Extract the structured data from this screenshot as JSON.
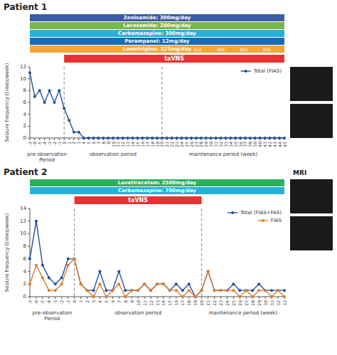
{
  "chart_data": [
    {
      "type": "line",
      "title": "Patient 1",
      "x": [
        -7,
        -6,
        -5,
        -4,
        -3,
        -2,
        -1,
        0,
        1,
        2,
        3,
        4,
        5,
        6,
        7,
        8,
        9,
        10,
        11,
        12,
        13,
        14,
        15,
        16,
        17,
        18,
        19,
        20,
        21,
        22,
        23,
        24,
        25,
        26,
        27,
        28,
        29,
        30,
        31,
        32,
        33,
        34,
        35,
        36,
        37,
        38,
        39,
        40,
        41,
        42,
        43,
        44,
        45
      ],
      "series": [
        {
          "name": "Total (FIAS)",
          "color": "#1f4e9c",
          "marker": "circle",
          "values": [
            11,
            7,
            8,
            6,
            8,
            6,
            8,
            5,
            3,
            1,
            1,
            0,
            0,
            0,
            0,
            0,
            0,
            0,
            0,
            0,
            0,
            0,
            0,
            0,
            0,
            0,
            0,
            0,
            0,
            0,
            0,
            0,
            0,
            0,
            0,
            0,
            0,
            0,
            0,
            0,
            0,
            0,
            0,
            0,
            0,
            0,
            0,
            0,
            0,
            0,
            0,
            0,
            0
          ]
        }
      ],
      "xlim": [
        -7,
        45
      ],
      "ylim": [
        0,
        12
      ],
      "xticks": [
        -7,
        -6,
        -5,
        -4,
        -3,
        -2,
        -1,
        0,
        1,
        2,
        3,
        4,
        5,
        6,
        7,
        8,
        9,
        10,
        11,
        12,
        13,
        14,
        15,
        16,
        17,
        18,
        19,
        20,
        21,
        22,
        23,
        24,
        25,
        26,
        27,
        28,
        29,
        30,
        31,
        32,
        33,
        34,
        35,
        36,
        37,
        38,
        39,
        40,
        41,
        42,
        43,
        44,
        45
      ],
      "yticks": [
        0,
        2,
        4,
        6,
        8,
        10,
        12
      ],
      "ylabel": "Seizure frequency (times/week)",
      "legend": "upper right",
      "grid": false,
      "vlines": [
        0,
        20
      ],
      "period_labels": [
        "pre-observation\nPeriod",
        "observation period",
        "maintenance period (week)"
      ],
      "tavns": {
        "label": "taVNS",
        "start": 0,
        "end": 45,
        "color": "#e83232"
      },
      "drug_bars": [
        {
          "label": "Zonisamide: 300mg/day",
          "color": "#3b5ba5"
        },
        {
          "label": "Lacosamide: 200mg/day",
          "color": "#7ab648"
        },
        {
          "label": "Carbamazepine: 300mg/day",
          "color": "#29b0d8"
        },
        {
          "label": "Perampanel: 12mg/day",
          "color": "#1a6bb5"
        },
        {
          "label": "Lamotrigine: 525mg/day",
          "color": "#f4a537",
          "notes": [
            "510",
            "495",
            "460",
            "465"
          ]
        }
      ]
    },
    {
      "type": "line",
      "title": "Patient 2",
      "x": [
        -7,
        -6,
        -5,
        -4,
        -3,
        -2,
        -1,
        0,
        1,
        2,
        3,
        4,
        5,
        6,
        7,
        8,
        9,
        10,
        11,
        12,
        13,
        14,
        15,
        16,
        17,
        18,
        19,
        20,
        21,
        22,
        23,
        24,
        25,
        26,
        27,
        28,
        29,
        30,
        31,
        32,
        33
      ],
      "series": [
        {
          "name": "Total (FIAS+FAS)",
          "color": "#1f4e9c",
          "marker": "circle",
          "values": [
            6,
            12,
            5,
            3,
            2,
            3,
            6,
            6,
            2,
            1,
            1,
            4,
            1,
            1,
            4,
            1,
            1,
            1,
            2,
            1,
            2,
            2,
            1,
            2,
            1,
            2,
            0,
            1,
            4,
            1,
            1,
            1,
            2,
            1,
            1,
            1,
            2,
            1,
            1,
            1,
            1
          ]
        },
        {
          "name": "FIAS",
          "color": "#e07b2a",
          "marker": "circle",
          "values": [
            2,
            5,
            3,
            1,
            1,
            2,
            5,
            6,
            2,
            1,
            0,
            2,
            0,
            1,
            2,
            0,
            1,
            1,
            2,
            1,
            2,
            2,
            1,
            1,
            0,
            1,
            0,
            1,
            4,
            1,
            1,
            1,
            1,
            0,
            1,
            0,
            1,
            1,
            0,
            1,
            0
          ]
        }
      ],
      "xlim": [
        -7,
        33
      ],
      "ylim": [
        0,
        14
      ],
      "xticks": [
        -7,
        -6,
        -5,
        -4,
        -3,
        -2,
        -1,
        0,
        1,
        2,
        3,
        4,
        5,
        6,
        7,
        8,
        9,
        10,
        11,
        12,
        13,
        14,
        15,
        16,
        17,
        18,
        19,
        20,
        21,
        22,
        23,
        24,
        25,
        26,
        27,
        28,
        29,
        30,
        31,
        32,
        33
      ],
      "yticks": [
        0,
        2,
        4,
        6,
        8,
        10,
        12,
        14
      ],
      "ylabel": "Seizure frequency (times/week)",
      "legend": "upper right",
      "grid": false,
      "vlines": [
        0,
        20
      ],
      "period_labels": [
        "pre-observation\nPeriod",
        "observation period",
        "maintenance period (week)"
      ],
      "tavns": {
        "label": "taVNS",
        "start": 0,
        "end": 20,
        "color": "#e83232"
      },
      "drug_bars": [
        {
          "label": "Levetiracetam: 2500mg/day",
          "color": "#2eaf60"
        },
        {
          "label": "Carbamazepine: 700mg/day",
          "color": "#29b0d8"
        }
      ],
      "annotations": [
        "MRI"
      ]
    }
  ]
}
